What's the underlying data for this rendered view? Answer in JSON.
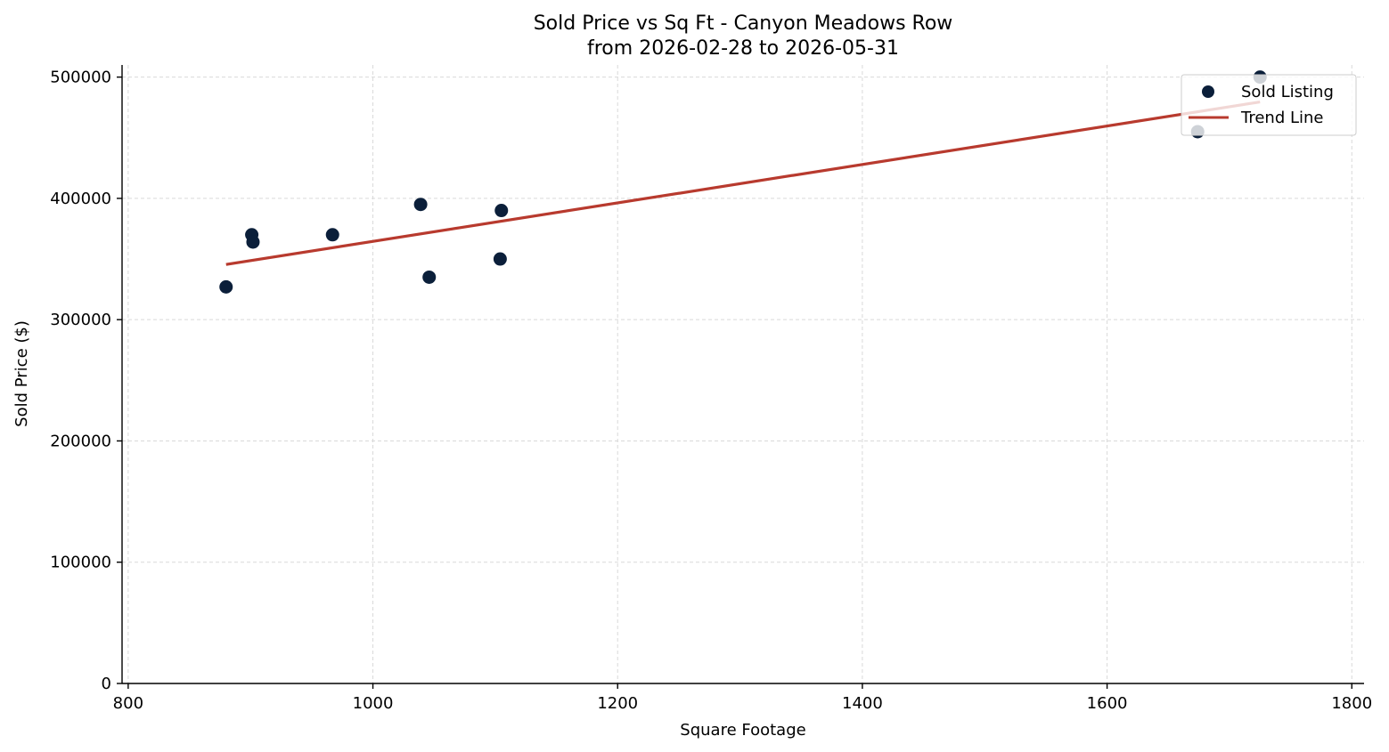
{
  "chart_data": {
    "type": "scatter",
    "title_line1": "Sold Price vs Sq Ft - Canyon Meadows Row",
    "title_line2": "from 2026-02-28 to 2026-05-31",
    "xlabel": "Square Footage",
    "ylabel": "Sold Price ($)",
    "xlim": [
      795,
      1810
    ],
    "ylim": [
      0,
      510000
    ],
    "xticks": [
      800,
      1000,
      1200,
      1400,
      1600,
      1800
    ],
    "yticks": [
      0,
      100000,
      200000,
      300000,
      400000,
      500000
    ],
    "xtick_labels": [
      "800",
      "1000",
      "1200",
      "1400",
      "1600",
      "1800"
    ],
    "ytick_labels": [
      "0",
      "100000",
      "200000",
      "300000",
      "400000",
      "500000"
    ],
    "grid": true,
    "legend_position": "top-right",
    "series": [
      {
        "name": "Sold Listing",
        "kind": "scatter",
        "color": "#0b1f3a",
        "points": [
          {
            "x": 880,
            "y": 327000
          },
          {
            "x": 901,
            "y": 370000
          },
          {
            "x": 902,
            "y": 364000
          },
          {
            "x": 967,
            "y": 370000
          },
          {
            "x": 1039,
            "y": 395000
          },
          {
            "x": 1046,
            "y": 335000
          },
          {
            "x": 1104,
            "y": 350000
          },
          {
            "x": 1105,
            "y": 390000
          },
          {
            "x": 1674,
            "y": 455000
          },
          {
            "x": 1725,
            "y": 500000
          }
        ]
      },
      {
        "name": "Trend Line",
        "kind": "line",
        "color": "#b83a2e",
        "points": [
          {
            "x": 880,
            "y": 345500
          },
          {
            "x": 1725,
            "y": 479500
          }
        ]
      }
    ]
  }
}
